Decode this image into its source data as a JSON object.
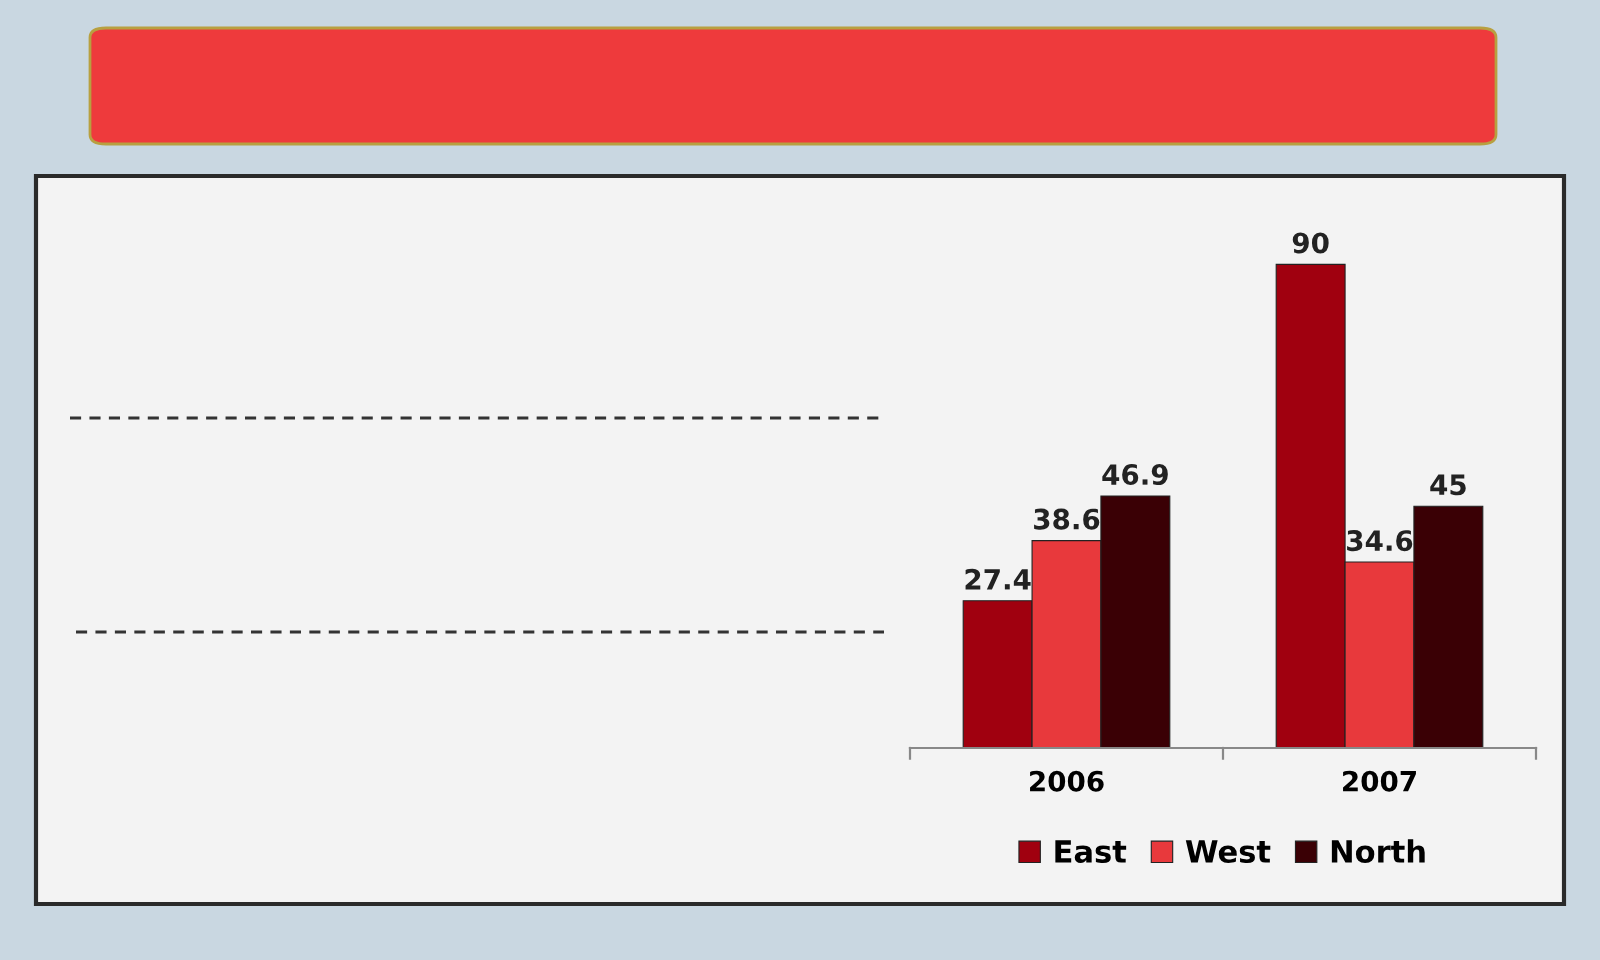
{
  "chart_data": {
    "type": "bar",
    "categories": [
      "2006",
      "2007"
    ],
    "series": [
      {
        "name": "East",
        "color": "#a0000f",
        "values": [
          27.4,
          90
        ]
      },
      {
        "name": "West",
        "color": "#e8393c",
        "values": [
          38.6,
          34.6
        ]
      },
      {
        "name": "North",
        "color": "#3a0005",
        "values": [
          46.9,
          45
        ]
      }
    ],
    "data_labels": true,
    "legend": "bottom"
  }
}
